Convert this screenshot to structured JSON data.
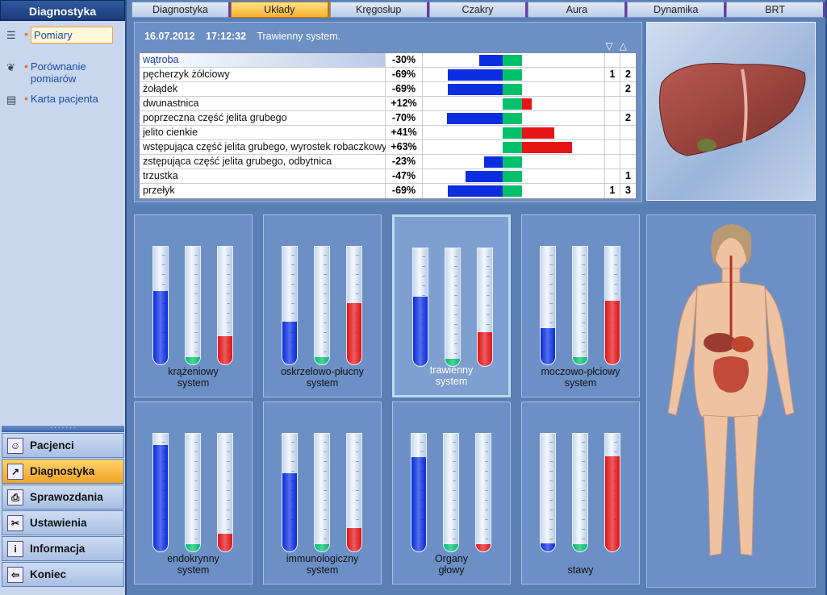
{
  "sidebar": {
    "title": "Diagnostyka",
    "items": [
      {
        "label": "Pomiary",
        "icon": "list-icon",
        "selected": true
      },
      {
        "label": "Porównanie pomiarów",
        "icon": "lungs-icon",
        "selected": false
      },
      {
        "label": "Karta pacjenta",
        "icon": "book-icon",
        "selected": false
      }
    ]
  },
  "nav": [
    {
      "label": "Pacjenci",
      "icon": "patients-icon",
      "active": false
    },
    {
      "label": "Diagnostyka",
      "icon": "chart-icon",
      "active": true
    },
    {
      "label": "Sprawozdania",
      "icon": "printer-icon",
      "active": false
    },
    {
      "label": "Ustawienia",
      "icon": "tools-icon",
      "active": false
    },
    {
      "label": "Informacja",
      "icon": "info-icon",
      "active": false
    },
    {
      "label": "Koniec",
      "icon": "exit-icon",
      "active": false
    }
  ],
  "tabs": [
    {
      "label": "Diagnostyka",
      "active": false
    },
    {
      "label": "Układy",
      "active": true
    },
    {
      "label": "Kręgosłup",
      "active": false
    },
    {
      "label": "Czakry",
      "active": false
    },
    {
      "label": "Aura",
      "active": false
    },
    {
      "label": "Dynamika",
      "active": false
    },
    {
      "label": "BRT",
      "active": false
    }
  ],
  "measurement": {
    "date": "16.07.2012",
    "time": "17:12:32",
    "system": "Trawienny system.",
    "sort_down": "▽",
    "sort_up": "△"
  },
  "organs": [
    {
      "name": "wątroba",
      "value": "-30%",
      "n": -30,
      "c1": "",
      "c2": ""
    },
    {
      "name": "pęcherzyk żółciowy",
      "value": "-69%",
      "n": -69,
      "c1": "1",
      "c2": "2"
    },
    {
      "name": "żołądek",
      "value": "-69%",
      "n": -69,
      "c1": "",
      "c2": "2"
    },
    {
      "name": "dwunastnica",
      "value": "+12%",
      "n": 12,
      "c1": "",
      "c2": ""
    },
    {
      "name": "poprzeczna część jelita grubego",
      "value": "-70%",
      "n": -70,
      "c1": "",
      "c2": "2"
    },
    {
      "name": "jelito cienkie",
      "value": "+41%",
      "n": 41,
      "c1": "",
      "c2": ""
    },
    {
      "name": "wstępująca część jelita grubego, wyrostek robaczkowy",
      "value": "+63%",
      "n": 63,
      "c1": "",
      "c2": ""
    },
    {
      "name": "zstępująca część jelita grubego, odbytnica",
      "value": "-23%",
      "n": -23,
      "c1": "",
      "c2": ""
    },
    {
      "name": "trzustka",
      "value": "-47%",
      "n": -47,
      "c1": "",
      "c2": "1"
    },
    {
      "name": "przełyk",
      "value": "-69%",
      "n": -69,
      "c1": "1",
      "c2": "3"
    }
  ],
  "colors": {
    "blue": "#0a2de0",
    "green": "#00c06a",
    "red": "#e61414"
  },
  "systems": [
    {
      "name": "krążeniowy\nsystem",
      "blue": 0.58,
      "green": 0.02,
      "red": 0.2,
      "selected": false
    },
    {
      "name": "oskrzelowo-płucny\nsystem",
      "blue": 0.32,
      "green": 0.02,
      "red": 0.48,
      "selected": false
    },
    {
      "name": "trawienny\nsystem",
      "blue": 0.55,
      "green": 0.02,
      "red": 0.25,
      "selected": true
    },
    {
      "name": "moczowo-płciowy\nsystem",
      "blue": 0.27,
      "green": 0.02,
      "red": 0.5,
      "selected": false
    },
    {
      "name": "endokrynny\nsystem",
      "blue": 0.86,
      "green": 0.02,
      "red": 0.11,
      "selected": false
    },
    {
      "name": "immunologiczny\nsystem",
      "blue": 0.62,
      "green": 0.02,
      "red": 0.16,
      "selected": false
    },
    {
      "name": "Organy\ngłowy",
      "blue": 0.76,
      "green": 0.02,
      "red": 0.02,
      "selected": false
    },
    {
      "name": "stawy",
      "blue": 0.03,
      "green": 0.02,
      "red": 0.77,
      "selected": false
    }
  ]
}
